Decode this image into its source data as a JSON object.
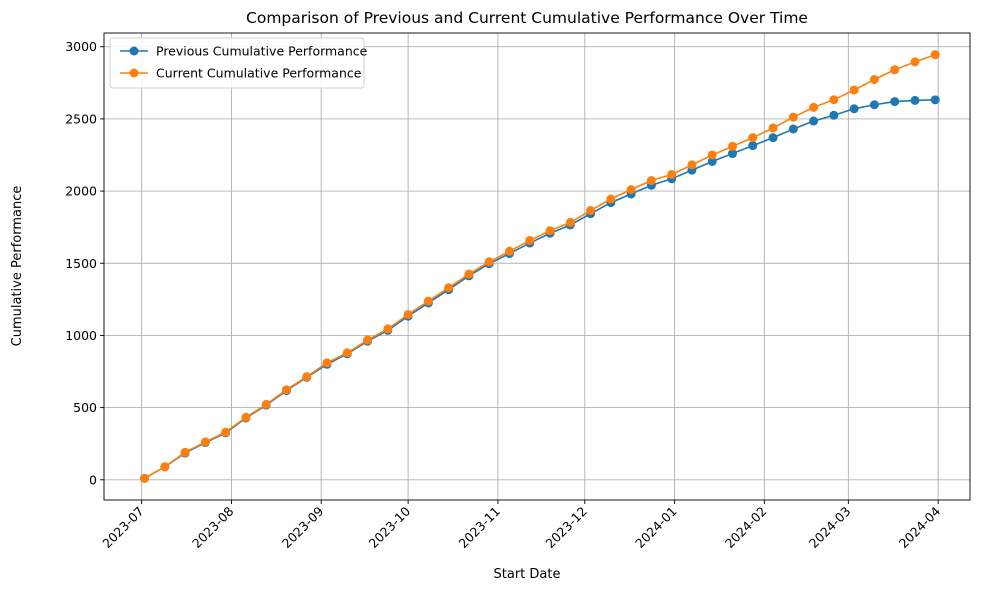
{
  "chart_data": {
    "type": "line",
    "title": "Comparison of Previous and Current Cumulative Performance Over Time",
    "xlabel": "Start Date",
    "ylabel": "Cumulative Performance",
    "x_ticks": [
      "2023-07",
      "2023-08",
      "2023-09",
      "2023-10",
      "2023-11",
      "2023-12",
      "2024-01",
      "2024-02",
      "2024-03",
      "2024-04"
    ],
    "y_ticks": [
      0,
      500,
      1000,
      1500,
      2000,
      2500,
      3000
    ],
    "ylim": [
      -140,
      3095
    ],
    "xlim": [
      "2023-06-18",
      "2024-04-12"
    ],
    "grid": true,
    "legend_position": "top-left",
    "x": [
      "2023-07-02",
      "2023-07-09",
      "2023-07-16",
      "2023-07-23",
      "2023-07-30",
      "2023-08-06",
      "2023-08-13",
      "2023-08-20",
      "2023-08-27",
      "2023-09-03",
      "2023-09-10",
      "2023-09-17",
      "2023-09-24",
      "2023-10-01",
      "2023-10-08",
      "2023-10-15",
      "2023-10-22",
      "2023-10-29",
      "2023-11-05",
      "2023-11-12",
      "2023-11-19",
      "2023-11-26",
      "2023-12-03",
      "2023-12-10",
      "2023-12-17",
      "2023-12-24",
      "2023-12-31",
      "2024-01-07",
      "2024-01-14",
      "2024-01-21",
      "2024-01-28",
      "2024-02-04",
      "2024-02-11",
      "2024-02-18",
      "2024-02-25",
      "2024-03-03",
      "2024-03-10",
      "2024-03-17",
      "2024-03-24",
      "2024-03-31"
    ],
    "series": [
      {
        "name": "Previous Cumulative Performance",
        "color": "#1f77b4",
        "values": [
          10,
          90,
          185,
          258,
          325,
          428,
          517,
          618,
          710,
          800,
          873,
          960,
          1035,
          1133,
          1225,
          1317,
          1413,
          1497,
          1567,
          1640,
          1708,
          1765,
          1843,
          1920,
          1980,
          2040,
          2085,
          2145,
          2205,
          2260,
          2315,
          2370,
          2430,
          2485,
          2525,
          2570,
          2598,
          2620,
          2628,
          2632
        ]
      },
      {
        "name": "Current Cumulative Performance",
        "color": "#ff7f0e",
        "values": [
          10,
          90,
          190,
          262,
          330,
          433,
          522,
          624,
          714,
          810,
          880,
          968,
          1045,
          1145,
          1238,
          1330,
          1425,
          1510,
          1583,
          1658,
          1725,
          1783,
          1865,
          1945,
          2010,
          2073,
          2115,
          2182,
          2250,
          2310,
          2370,
          2437,
          2512,
          2580,
          2633,
          2700,
          2773,
          2840,
          2895,
          2945
        ]
      }
    ]
  }
}
